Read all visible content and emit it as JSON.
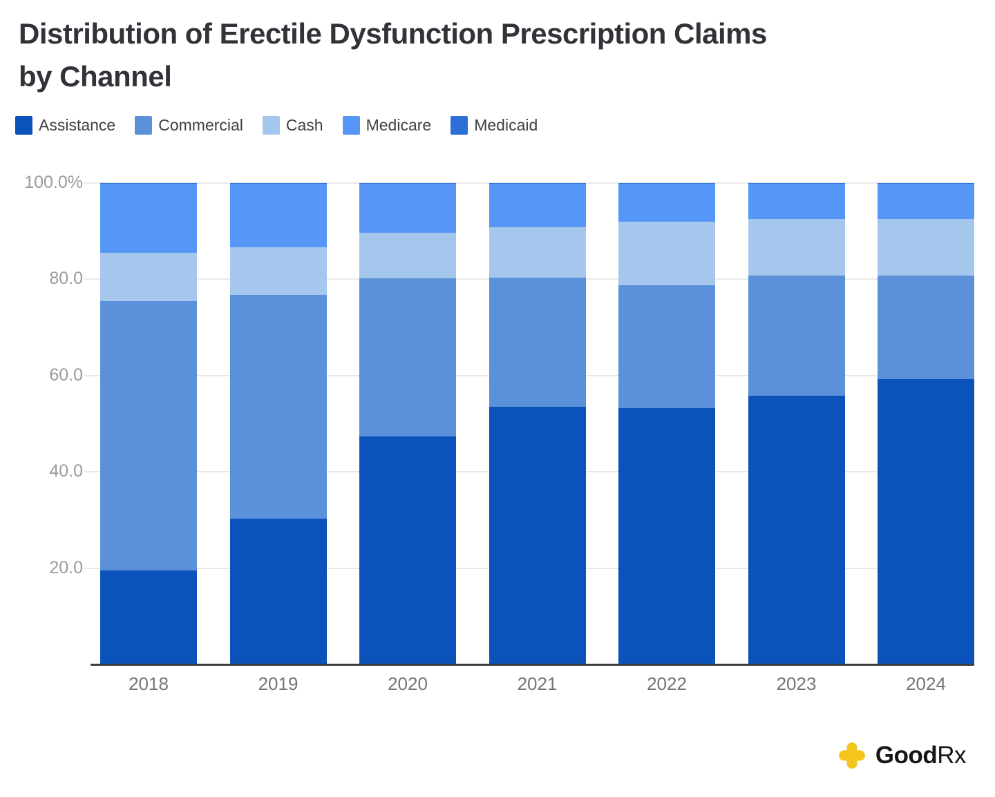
{
  "title": {
    "line1": "Distribution of Erectile Dysfunction Prescription Claims",
    "line2": "by Channel"
  },
  "legend": [
    {
      "label": "Assistance",
      "color": "#0b53ba"
    },
    {
      "label": "Commercial",
      "color": "#5b90db"
    },
    {
      "label": "Cash",
      "color": "#a6c7ed"
    },
    {
      "label": "Medicare",
      "color": "#5596f6"
    },
    {
      "label": "Medicaid",
      "color": "#2d6fd9"
    }
  ],
  "chart_data": {
    "type": "bar",
    "subtype": "stacked-percent",
    "title": "Distribution of Erectile Dysfunction Prescription Claims by Channel",
    "categories": [
      "2018",
      "2019",
      "2020",
      "2021",
      "2022",
      "2023",
      "2024"
    ],
    "series": [
      {
        "name": "Assistance",
        "color": "#0b53ba",
        "values": [
          19.5,
          30.3,
          47.3,
          53.5,
          53.2,
          55.8,
          59.3
        ]
      },
      {
        "name": "Commercial",
        "color": "#5b90db",
        "values": [
          56.0,
          46.5,
          32.9,
          26.9,
          25.6,
          25.0,
          21.5
        ]
      },
      {
        "name": "Cash",
        "color": "#a6c7ed",
        "values": [
          10.0,
          9.9,
          9.5,
          10.4,
          13.2,
          11.7,
          11.7
        ]
      },
      {
        "name": "Medicare",
        "color": "#5596f6",
        "values": [
          14.3,
          13.1,
          10.1,
          9.0,
          7.8,
          7.3,
          7.3
        ]
      },
      {
        "name": "Medicaid",
        "color": "#2d6fd9",
        "values": [
          0.2,
          0.2,
          0.2,
          0.2,
          0.2,
          0.2,
          0.2
        ]
      }
    ],
    "xlabel": "",
    "ylabel": "",
    "ylim": [
      0,
      100
    ],
    "y_ticks": [
      {
        "value": 100,
        "label": "100.0%"
      },
      {
        "value": 80,
        "label": "80.0"
      },
      {
        "value": 60,
        "label": "60.0"
      },
      {
        "value": 40,
        "label": "40.0"
      },
      {
        "value": 20,
        "label": "20.0"
      }
    ],
    "grid": true,
    "legend_position": "top",
    "stack_order": "bottom-to-top: Assistance, Commercial, Cash, Medicare, Medicaid"
  },
  "branding": {
    "logo_bold": "Good",
    "logo_light": "Rx",
    "plus_color": "#f3c51d"
  }
}
